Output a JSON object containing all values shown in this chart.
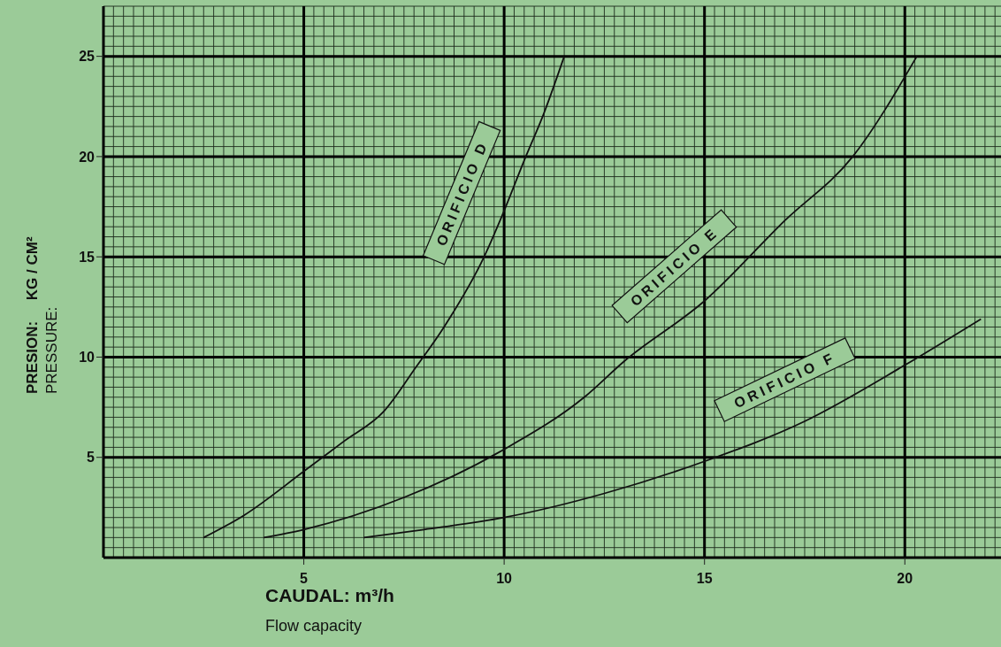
{
  "chart_data": {
    "type": "line",
    "xlabel": "CAUDAL: m³/h\nFlow capacity",
    "ylabel": "PRESION:     KG / CM²\nPRESSURE:",
    "series": [
      {
        "name": "ORIFICIO D",
        "color": "#111111",
        "x": [
          2.5,
          3.5,
          5,
          6,
          7,
          7.8,
          8.5,
          9.5,
          10,
          10.5,
          11,
          11.5
        ],
        "values": [
          1.0,
          2.1,
          4.3,
          5.8,
          7.3,
          9.5,
          11.5,
          15.0,
          17.3,
          19.8,
          22.2,
          25.0
        ]
      },
      {
        "name": "ORIFICIO E",
        "color": "#111111",
        "x": [
          4,
          5,
          7.5,
          10,
          12,
          13,
          15,
          17,
          18.7,
          20.3
        ],
        "values": [
          1.0,
          1.4,
          3.0,
          5.4,
          8.0,
          9.8,
          12.8,
          16.8,
          20.0,
          25.0
        ]
      },
      {
        "name": "ORIFICIO F",
        "color": "#111111",
        "x": [
          6.5,
          8,
          10,
          12.5,
          15,
          17.5,
          20,
          21.9
        ],
        "values": [
          1.0,
          1.4,
          2.0,
          3.2,
          4.8,
          6.8,
          9.6,
          11.9
        ]
      }
    ],
    "xlim": [
      0,
      22.4
    ],
    "xticks": [
      5,
      10,
      15,
      20
    ],
    "ylim": [
      0,
      27.5
    ],
    "yticks": [
      5,
      10,
      15,
      20,
      25
    ],
    "grid": true
  }
}
